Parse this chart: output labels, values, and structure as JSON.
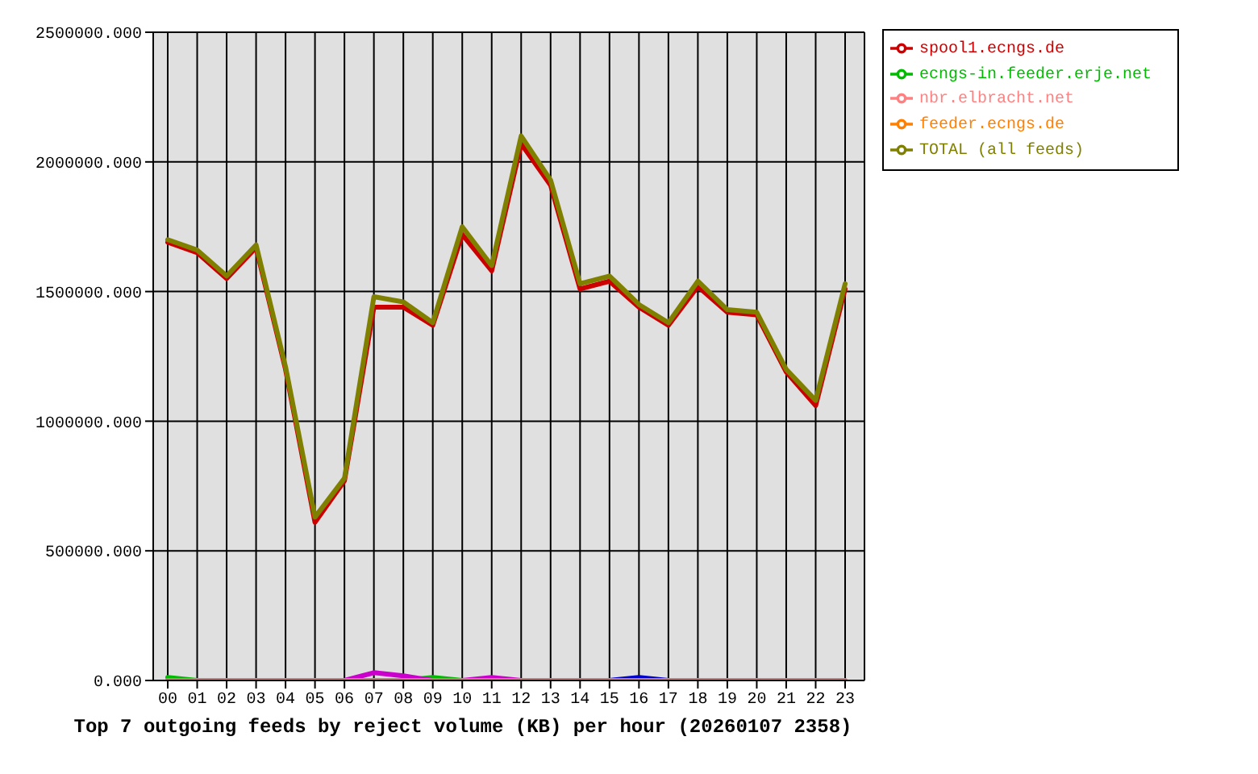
{
  "chart_data": {
    "type": "line",
    "title": "Top 7 outgoing feeds by reject volume (KB) per hour (20260107 2358)",
    "categories": [
      "00",
      "01",
      "02",
      "03",
      "04",
      "05",
      "06",
      "07",
      "08",
      "09",
      "10",
      "11",
      "12",
      "13",
      "14",
      "15",
      "16",
      "17",
      "18",
      "19",
      "20",
      "21",
      "22",
      "23"
    ],
    "series": [
      {
        "name": "spool1.ecngs.de",
        "color": "#cc0000",
        "values": [
          1690000,
          1650000,
          1550000,
          1670000,
          1200000,
          610000,
          770000,
          1440000,
          1440000,
          1370000,
          1720000,
          1580000,
          2070000,
          1910000,
          1510000,
          1540000,
          1440000,
          1370000,
          1520000,
          1420000,
          1410000,
          1190000,
          1060000,
          1510000
        ]
      },
      {
        "name": "ecngs-in.feeder.erje.net",
        "color": "#00bb00",
        "values": [
          12000,
          0,
          null,
          null,
          null,
          null,
          null,
          null,
          0,
          12000,
          0,
          null,
          null,
          null,
          null,
          null,
          null,
          null,
          null,
          null,
          null,
          null,
          null,
          null
        ]
      },
      {
        "color": "#0000cc",
        "values": [
          null,
          null,
          null,
          null,
          null,
          null,
          null,
          null,
          null,
          null,
          null,
          null,
          null,
          null,
          null,
          0,
          12000,
          0,
          null,
          null,
          null,
          null,
          null,
          null
        ]
      },
      {
        "color": "#cc00cc",
        "values": [
          null,
          null,
          null,
          null,
          null,
          null,
          0,
          30000,
          18000,
          0,
          0,
          12000,
          0,
          null,
          null,
          null,
          null,
          null,
          null,
          null,
          null,
          null,
          null,
          null
        ]
      },
      {
        "name": "nbr.elbracht.net",
        "color": "#ff8080",
        "values": [
          null,
          null,
          null,
          null,
          null,
          null,
          null,
          null,
          null,
          null,
          null,
          null,
          null,
          null,
          null,
          null,
          null,
          null,
          null,
          null,
          null,
          null,
          null,
          null
        ]
      },
      {
        "name": "feeder.ecngs.de",
        "color": "#ff8000",
        "values": [
          null,
          null,
          null,
          null,
          null,
          null,
          null,
          null,
          null,
          null,
          null,
          null,
          null,
          null,
          null,
          null,
          null,
          null,
          null,
          null,
          null,
          null,
          null,
          null
        ]
      },
      {
        "color": "#c08080",
        "values": [
          0,
          0,
          0,
          0,
          0,
          0,
          0,
          0,
          0,
          0,
          0,
          0,
          0,
          0,
          0,
          0,
          0,
          0,
          0,
          0,
          0,
          0,
          0,
          0
        ]
      },
      {
        "name": "TOTAL (all feeds)",
        "color": "#808000",
        "values": [
          1700000,
          1660000,
          1560000,
          1680000,
          1210000,
          630000,
          780000,
          1480000,
          1460000,
          1380000,
          1750000,
          1600000,
          2100000,
          1930000,
          1530000,
          1560000,
          1450000,
          1380000,
          1540000,
          1430000,
          1420000,
          1200000,
          1080000,
          1530000
        ]
      }
    ],
    "ylim": [
      0,
      2500000
    ],
    "yticks": [
      {
        "value": 0,
        "label": "0.000"
      },
      {
        "value": 500000,
        "label": "500000.000"
      },
      {
        "value": 1000000,
        "label": "1000000.000"
      },
      {
        "value": 1500000,
        "label": "1500000.000"
      },
      {
        "value": 2000000,
        "label": "2000000.000"
      },
      {
        "value": 2500000,
        "label": "2500000.000"
      }
    ],
    "grid": true,
    "legend": "right"
  }
}
